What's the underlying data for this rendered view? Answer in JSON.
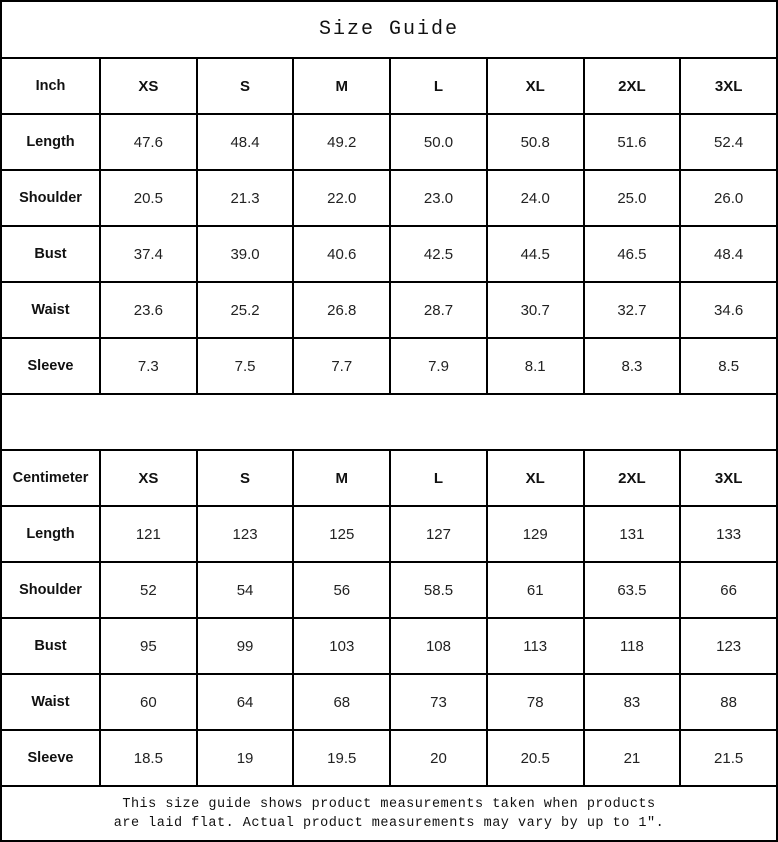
{
  "title": "Size Guide",
  "tables": [
    {
      "unit_label": "Inch",
      "size_headers": [
        "XS",
        "S",
        "M",
        "L",
        "XL",
        "2XL",
        "3XL"
      ],
      "rows": [
        {
          "label": "Length",
          "values": [
            "47.6",
            "48.4",
            "49.2",
            "50.0",
            "50.8",
            "51.6",
            "52.4"
          ]
        },
        {
          "label": "Shoulder",
          "values": [
            "20.5",
            "21.3",
            "22.0",
            "23.0",
            "24.0",
            "25.0",
            "26.0"
          ]
        },
        {
          "label": "Bust",
          "values": [
            "37.4",
            "39.0",
            "40.6",
            "42.5",
            "44.5",
            "46.5",
            "48.4"
          ]
        },
        {
          "label": "Waist",
          "values": [
            "23.6",
            "25.2",
            "26.8",
            "28.7",
            "30.7",
            "32.7",
            "34.6"
          ]
        },
        {
          "label": "Sleeve",
          "values": [
            "7.3",
            "7.5",
            "7.7",
            "7.9",
            "8.1",
            "8.3",
            "8.5"
          ]
        }
      ]
    },
    {
      "unit_label": "Centimeter",
      "size_headers": [
        "XS",
        "S",
        "M",
        "L",
        "XL",
        "2XL",
        "3XL"
      ],
      "rows": [
        {
          "label": "Length",
          "values": [
            "121",
            "123",
            "125",
            "127",
            "129",
            "131",
            "133"
          ]
        },
        {
          "label": "Shoulder",
          "values": [
            "52",
            "54",
            "56",
            "58.5",
            "61",
            "63.5",
            "66"
          ]
        },
        {
          "label": "Bust",
          "values": [
            "95",
            "99",
            "103",
            "108",
            "113",
            "118",
            "123"
          ]
        },
        {
          "label": "Waist",
          "values": [
            "60",
            "64",
            "68",
            "73",
            "78",
            "83",
            "88"
          ]
        },
        {
          "label": "Sleeve",
          "values": [
            "18.5",
            "19",
            "19.5",
            "20",
            "20.5",
            "21",
            "21.5"
          ]
        }
      ]
    }
  ],
  "footer": {
    "line1": "This size guide shows product measurements taken when products",
    "line2": "are laid flat. Actual product measurements may vary by up to 1″."
  },
  "colors": {
    "border": "#000000",
    "text": "#1c1c1c",
    "background": "#ffffff"
  }
}
